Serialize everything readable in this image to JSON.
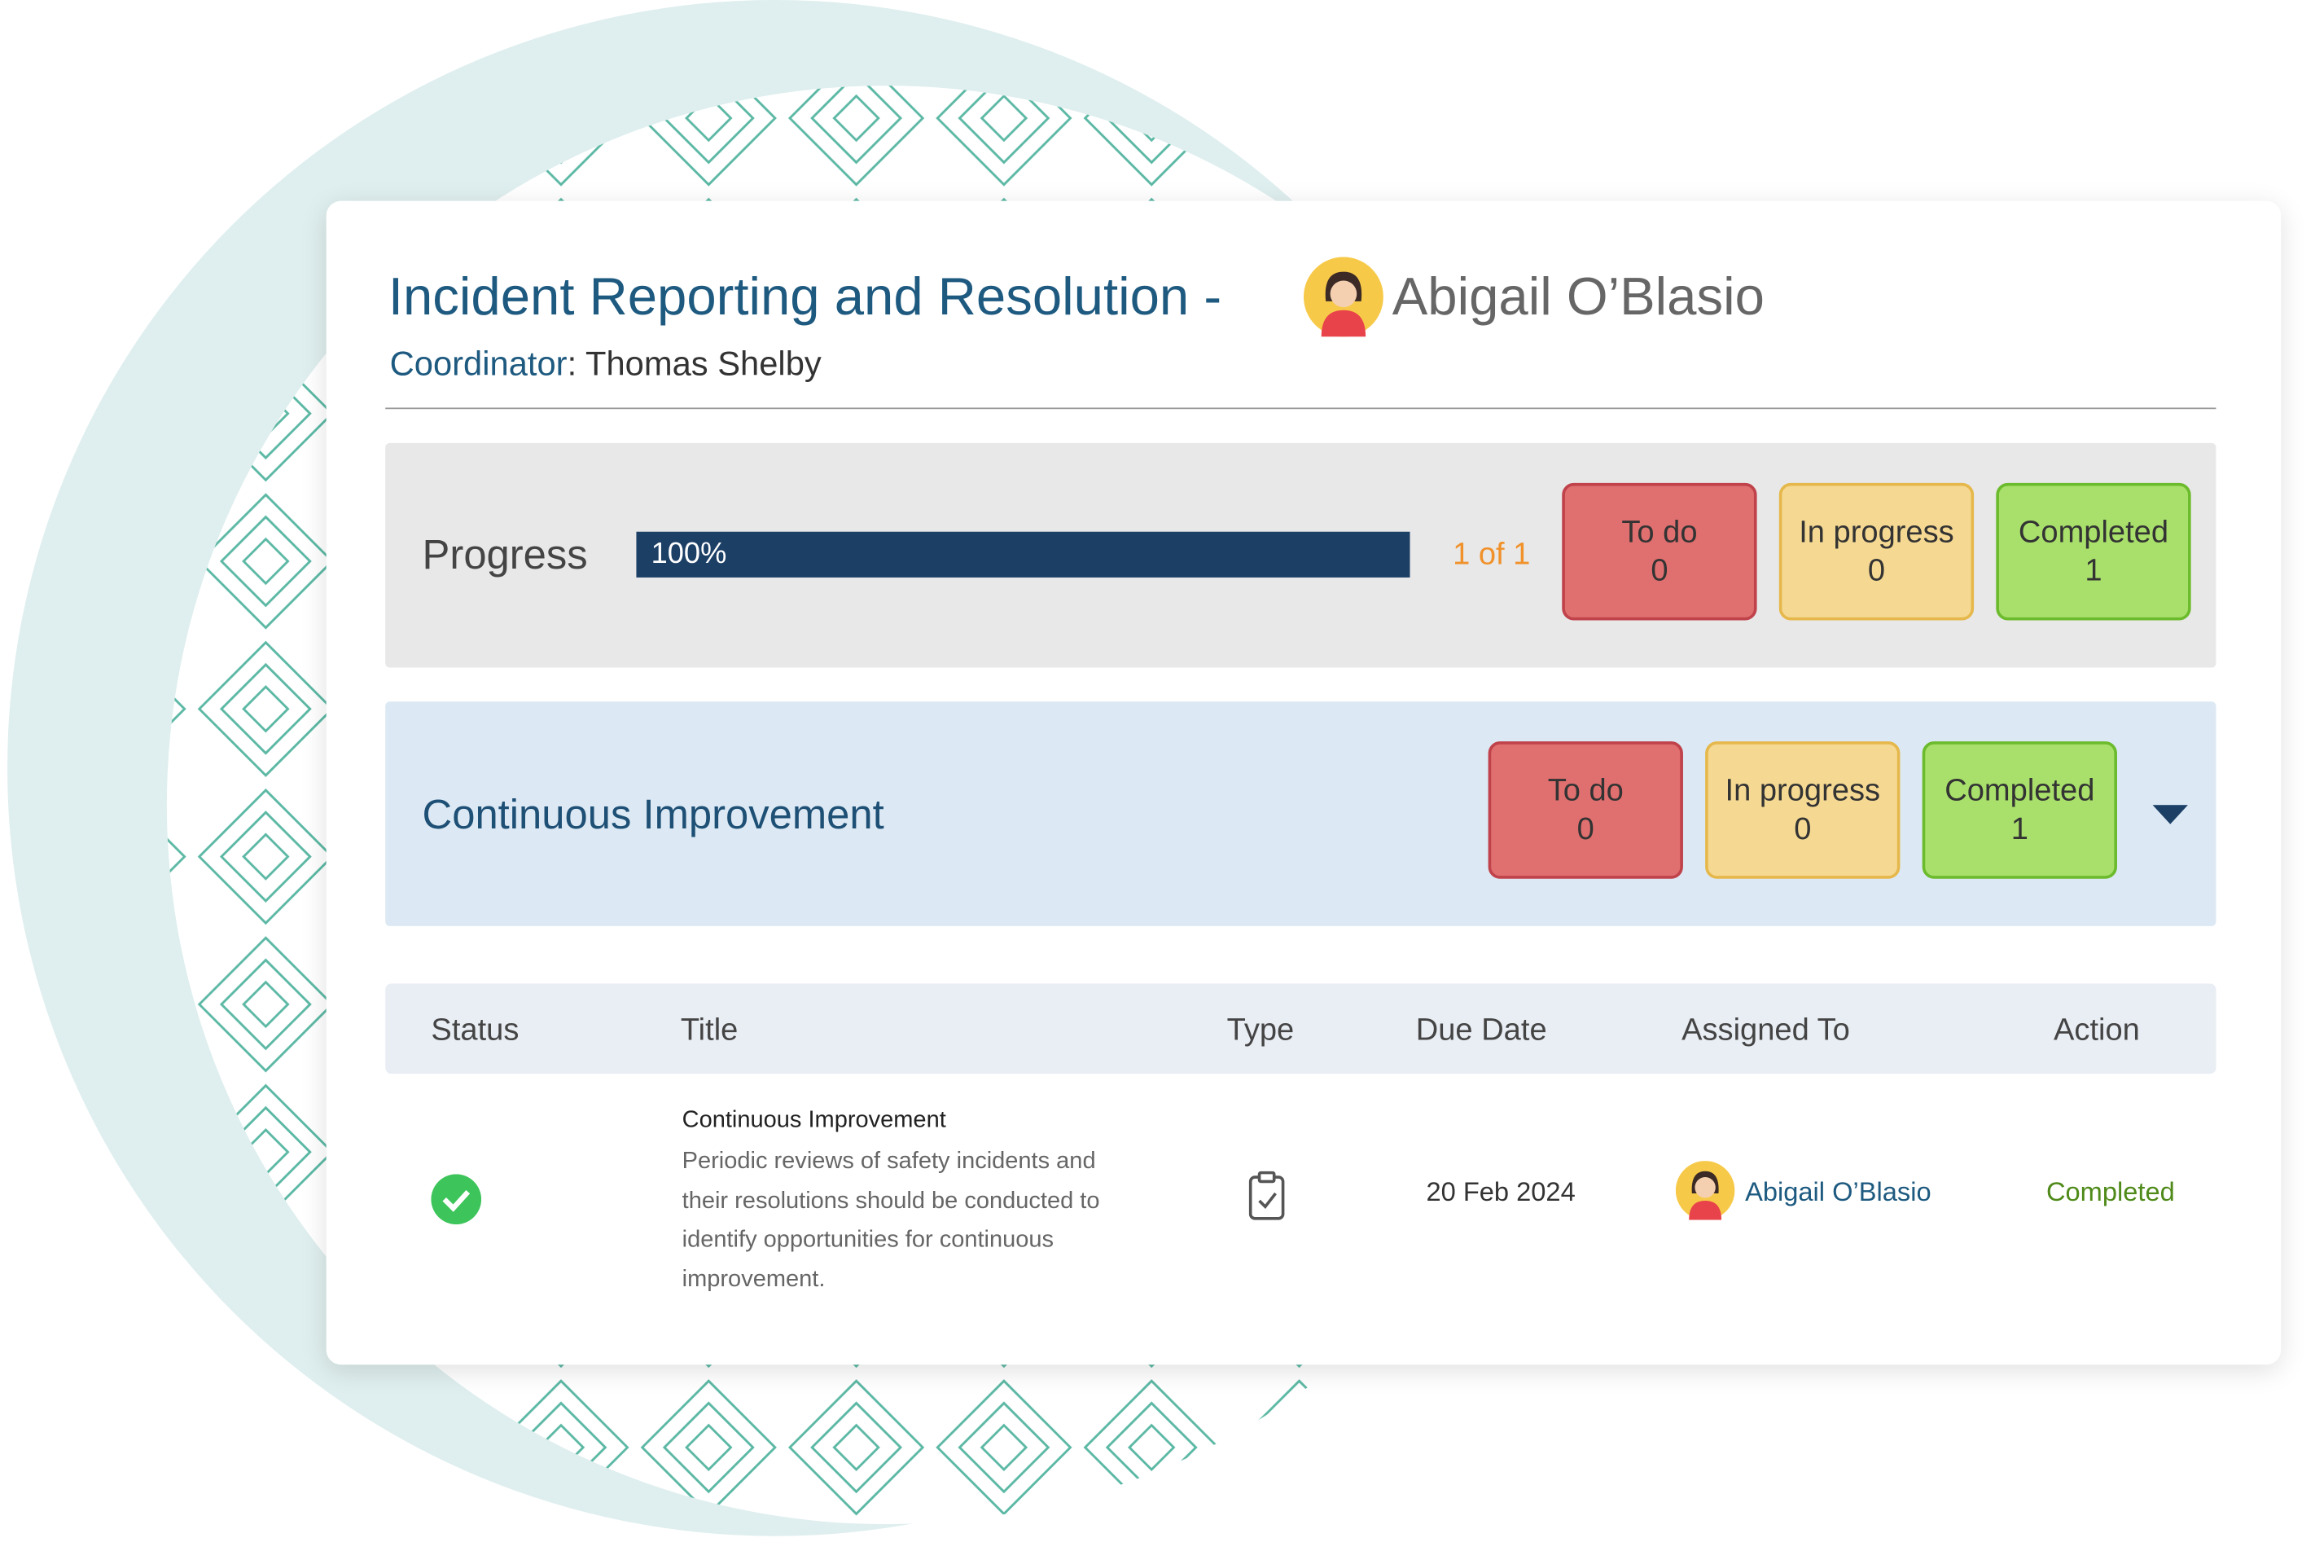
{
  "header": {
    "title": "Incident Reporting and Resolution -",
    "person": "Abigail O’Blasio",
    "coordinator_label": "Coordinator",
    "coordinator_name": "Thomas Shelby"
  },
  "progress": {
    "label": "Progress",
    "percent": "100%",
    "count": "1 of 1",
    "statuses": [
      {
        "label": "To do",
        "count": 0
      },
      {
        "label": "In progress",
        "count": 0
      },
      {
        "label": "Completed",
        "count": 1
      }
    ]
  },
  "section": {
    "title": "Continuous Improvement",
    "statuses": [
      {
        "label": "To do",
        "count": 0
      },
      {
        "label": "In progress",
        "count": 0
      },
      {
        "label": "Completed",
        "count": 1
      }
    ]
  },
  "table": {
    "headers": [
      "Status",
      "Title",
      "Type",
      "Due Date",
      "Assigned To",
      "Action"
    ],
    "rows": [
      {
        "title": "Continuous Improvement",
        "description": "Periodic reviews of safety incidents and their resolutions should be conducted to identify opportunities for continuous improvement.",
        "due_date": "20 Feb 2024",
        "assigned_to": "Abigail O’Blasio",
        "action": "Completed"
      }
    ]
  }
}
